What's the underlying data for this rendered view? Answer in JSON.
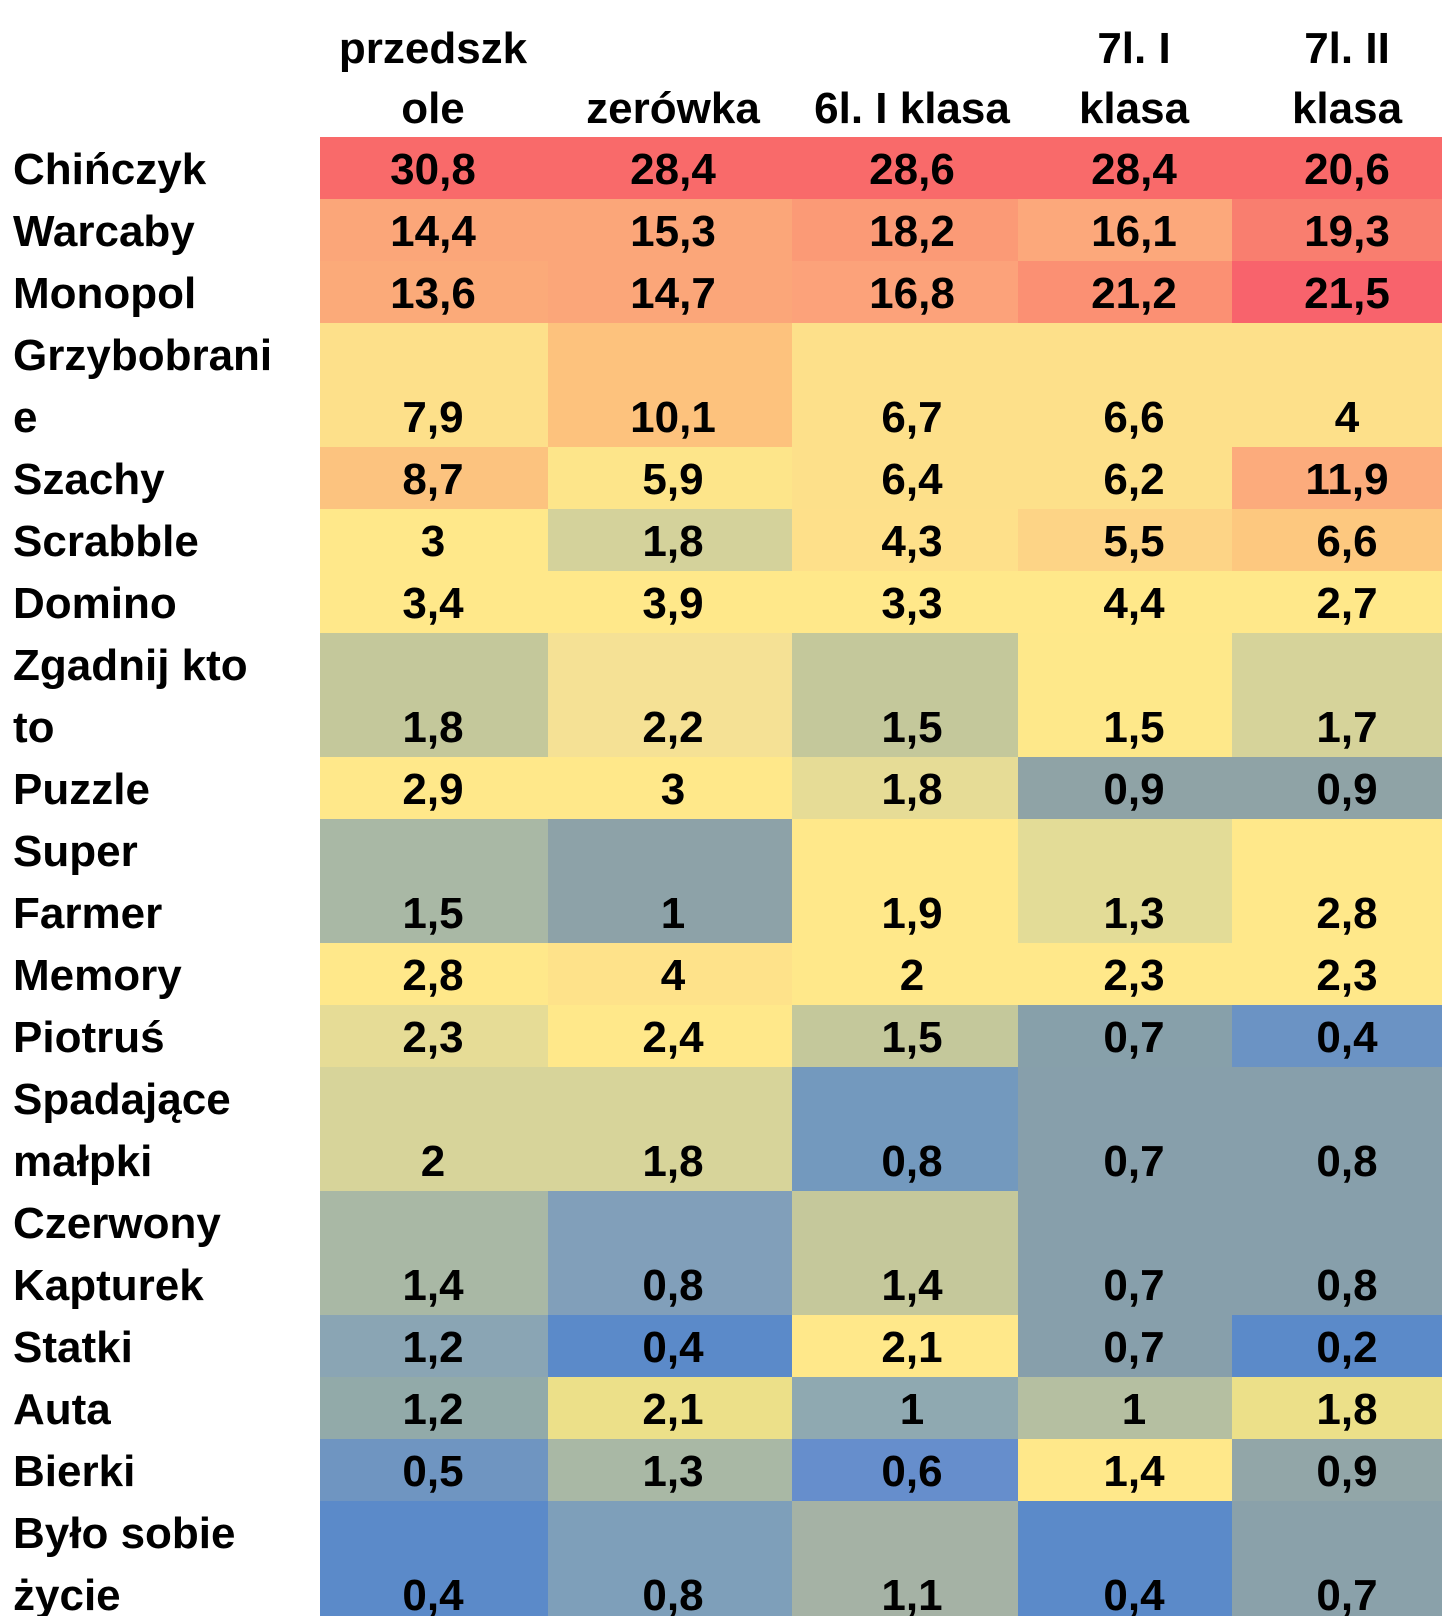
{
  "chart_data": {
    "type": "heatmap",
    "columns": [
      [
        "przedszk",
        "ole"
      ],
      [
        "",
        "zerówka"
      ],
      [
        "",
        "6l. I klasa"
      ],
      [
        "7l. I",
        "klasa"
      ],
      [
        "7l. II",
        "klasa"
      ]
    ],
    "rows": [
      {
        "label": [
          "Chińczyk"
        ],
        "values": [
          "30,8",
          "28,4",
          "28,6",
          "28,4",
          "20,6"
        ]
      },
      {
        "label": [
          "Warcaby"
        ],
        "values": [
          "14,4",
          "15,3",
          "18,2",
          "16,1",
          "19,3"
        ]
      },
      {
        "label": [
          "Monopol"
        ],
        "values": [
          "13,6",
          "14,7",
          "16,8",
          "21,2",
          "21,5"
        ]
      },
      {
        "label": [
          "Grzybobrani",
          "e"
        ],
        "values": [
          "7,9",
          "10,1",
          "6,7",
          "6,6",
          "4"
        ]
      },
      {
        "label": [
          "Szachy"
        ],
        "values": [
          "8,7",
          "5,9",
          "6,4",
          "6,2",
          "11,9"
        ]
      },
      {
        "label": [
          "Scrabble"
        ],
        "values": [
          "3",
          "1,8",
          "4,3",
          "5,5",
          "6,6"
        ]
      },
      {
        "label": [
          "Domino"
        ],
        "values": [
          "3,4",
          "3,9",
          "3,3",
          "4,4",
          "2,7"
        ]
      },
      {
        "label": [
          "Zgadnij  kto",
          "to"
        ],
        "values": [
          "1,8",
          "2,2",
          "1,5",
          "1,5",
          "1,7"
        ]
      },
      {
        "label": [
          "Puzzle"
        ],
        "values": [
          "2,9",
          "3",
          "1,8",
          "0,9",
          "0,9"
        ]
      },
      {
        "label": [
          "Super",
          "Farmer"
        ],
        "values": [
          "1,5",
          "1",
          "1,9",
          "1,3",
          "2,8"
        ]
      },
      {
        "label": [
          "Memory"
        ],
        "values": [
          "2,8",
          "4",
          "2",
          "2,3",
          "2,3"
        ]
      },
      {
        "label": [
          "Piotruś"
        ],
        "values": [
          "2,3",
          "2,4",
          "1,5",
          "0,7",
          "0,4"
        ]
      },
      {
        "label": [
          "Spadające",
          "małpki"
        ],
        "values": [
          "2",
          "1,8",
          "0,8",
          "0,7",
          "0,8"
        ]
      },
      {
        "label": [
          "Czerwony",
          "Kapturek"
        ],
        "values": [
          "1,4",
          "0,8",
          "1,4",
          "0,7",
          "0,8"
        ]
      },
      {
        "label": [
          "Statki"
        ],
        "values": [
          "1,2",
          "0,4",
          "2,1",
          "0,7",
          "0,2"
        ]
      },
      {
        "label": [
          "Auta"
        ],
        "values": [
          "1,2",
          "2,1",
          "1",
          "1",
          "1,8"
        ]
      },
      {
        "label": [
          "Bierki"
        ],
        "values": [
          "0,5",
          "1,3",
          "0,6",
          "1,4",
          "0,9"
        ]
      },
      {
        "label": [
          "Było sobie",
          "życie"
        ],
        "values": [
          "0,4",
          "0,8",
          "1,1",
          "0,4",
          "0,7"
        ]
      }
    ],
    "colors": [
      [
        "#f96a6a",
        "#f96a6a",
        "#f96a6a",
        "#f96a6a",
        "#f96a6a"
      ],
      [
        "#fba679",
        "#fba679",
        "#fb9a76",
        "#fca87b",
        "#f97e6f"
      ],
      [
        "#fbaa79",
        "#fba679",
        "#fca27a",
        "#fb9073",
        "#f8636c"
      ],
      [
        "#fde08a",
        "#fdc27d",
        "#fde08a",
        "#fde08a",
        "#fde08a"
      ],
      [
        "#fcc37f",
        "#fde58a",
        "#fde08a",
        "#fde08a",
        "#fcab7c"
      ],
      [
        "#ffe88a",
        "#d4d29b",
        "#fee08a",
        "#fdd486",
        "#fdc87f"
      ],
      [
        "#ffe88a",
        "#ffe88a",
        "#ffe88a",
        "#ffe88a",
        "#ffe88a"
      ],
      [
        "#c4c89b",
        "#f5e195",
        "#c4c89b",
        "#fee88a",
        "#d6d39a"
      ],
      [
        "#ffe88a",
        "#ffe88a",
        "#e6dc96",
        "#8fa3a6",
        "#8fa3a6"
      ],
      [
        "#a9b8a5",
        "#8da2a8",
        "#ffe88a",
        "#e3dc97",
        "#ffe88a"
      ],
      [
        "#ffe88a",
        "#fee28a",
        "#ffe88a",
        "#ffe88a",
        "#ffe88a"
      ],
      [
        "#e6dc96",
        "#ffe88a",
        "#c4c89b",
        "#87a0aa",
        "#6b93c4"
      ],
      [
        "#d7d49a",
        "#d7d49a",
        "#7399be",
        "#879fab",
        "#879fab"
      ],
      [
        "#a9b8a5",
        "#819fba",
        "#c5c89b",
        "#879fab",
        "#879fab"
      ],
      [
        "#8aa5b4",
        "#5b8ac9",
        "#ffe88a",
        "#879fab",
        "#5b8ac9"
      ],
      [
        "#92aaa9",
        "#ece089",
        "#8fa9b1",
        "#b5bfa1",
        "#ece089"
      ],
      [
        "#6f95c1",
        "#a9b8a5",
        "#668ecc",
        "#ffe88a",
        "#92a6a8"
      ],
      [
        "#5b8ac9",
        "#7e9fba",
        "#a5b2a5",
        "#5b8ac9",
        "#8aa1aa"
      ]
    ]
  }
}
